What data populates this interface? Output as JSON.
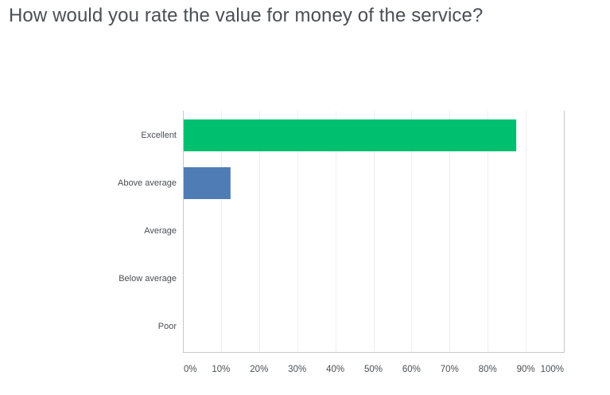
{
  "question": {
    "title": "How would you rate the value for money of the service?"
  },
  "colors": {
    "excellent": "#00bf6f",
    "above_average": "#507cb6",
    "gridline": "#eceef0",
    "axis": "#c5c9cd",
    "text": "#4a4f55"
  },
  "chart_data": {
    "type": "bar",
    "orientation": "horizontal",
    "categories": [
      "Excellent",
      "Above average",
      "Average",
      "Below average",
      "Poor"
    ],
    "values": [
      87.5,
      12.5,
      0,
      0,
      0
    ],
    "bar_colors": [
      "#00bf6f",
      "#507cb6",
      "#00bf6f",
      "#00bf6f",
      "#00bf6f"
    ],
    "x_ticks": [
      "0%",
      "10%",
      "20%",
      "30%",
      "40%",
      "50%",
      "60%",
      "70%",
      "80%",
      "90%",
      "100%"
    ],
    "xlim": [
      0,
      100
    ],
    "grid": true,
    "title": "",
    "xlabel": "",
    "ylabel": ""
  }
}
